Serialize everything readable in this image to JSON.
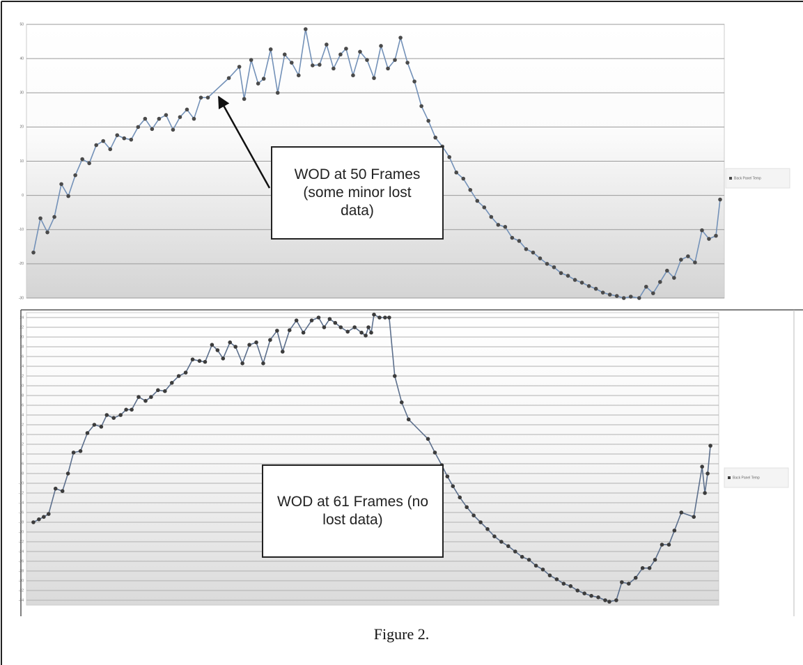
{
  "caption": "Figure 2.",
  "chart_data": [
    {
      "type": "line",
      "annotation": "WOD at 50 Frames (some minor lost data)",
      "xlim": [
        4,
        104
      ],
      "ylim": [
        -30,
        50
      ],
      "yticks": [
        -30,
        -20,
        -10,
        0,
        10,
        20,
        30,
        40,
        50
      ],
      "grid": true,
      "legend": "right",
      "x": [
        5,
        6,
        7,
        8,
        9,
        10,
        11,
        12,
        13,
        14,
        15,
        16,
        17,
        18,
        19,
        20,
        21,
        22,
        23,
        24,
        25,
        26,
        27,
        28,
        29,
        30,
        33,
        34.5,
        35.2,
        36.2,
        37.2,
        38,
        39,
        40,
        41,
        42,
        43,
        44,
        45,
        46,
        47,
        48,
        49,
        49.8,
        50.8,
        51.8,
        52.8,
        53.8,
        54.8,
        55.8,
        56.8,
        57.6,
        58.6,
        59.6,
        60.6,
        61.6,
        62.6,
        63.6,
        64.6,
        65.6,
        66.6,
        67.6,
        68.6,
        69.6,
        70.6,
        71.6,
        72.6,
        73.6,
        74.6,
        75.6,
        76.6,
        77.6,
        78.6,
        79.6,
        80.6,
        81.6,
        82.6,
        83.6,
        84.6,
        85.6,
        86.6,
        87.6,
        88.6,
        89.6,
        90.6,
        91.8,
        92.8,
        93.8,
        94.8,
        95.8,
        96.8,
        97.8,
        98.8,
        99.8,
        100.8,
        101.8,
        102.8,
        103.4
      ],
      "series": [
        {
          "name": "Back Panel Temp",
          "color": "#7391b8",
          "values": [
            -16.7,
            -6.7,
            -10.8,
            -6.3,
            3.3,
            -0.2,
            5.9,
            10.6,
            9.4,
            14.7,
            15.9,
            13.5,
            17.6,
            16.7,
            16.3,
            20,
            22.4,
            19.4,
            22.4,
            23.5,
            19.2,
            22.9,
            25.1,
            22.4,
            28.6,
            28.6,
            34.3,
            37.6,
            28.2,
            39.6,
            32.7,
            34.1,
            42.7,
            30,
            41.2,
            38.8,
            35.1,
            48.6,
            38,
            38.2,
            44.1,
            37.1,
            41.2,
            42.9,
            35.1,
            42,
            39.6,
            34.3,
            43.7,
            37.1,
            39.6,
            46.1,
            38.8,
            33.3,
            26.1,
            21.8,
            16.9,
            14.3,
            11.2,
            6.7,
            4.9,
            1.6,
            -1.6,
            -3.5,
            -6.3,
            -8.6,
            -9.2,
            -12.4,
            -13.3,
            -15.7,
            -16.7,
            -18.4,
            -20,
            -21,
            -22.7,
            -23.5,
            -24.7,
            -25.5,
            -26.5,
            -27.3,
            -28.4,
            -29,
            -29.4,
            -30,
            -29.6,
            -30,
            -26.7,
            -28.6,
            -25.3,
            -22,
            -24.1,
            -18.8,
            -17.8,
            -19.6,
            -10.2,
            -12.7,
            -11.8,
            -1.2
          ]
        }
      ]
    },
    {
      "type": "line",
      "annotation": "WOD at 61 Frames (no lost data)",
      "xlim": [
        4,
        104
      ],
      "ylim": [
        -35,
        25
      ],
      "yticks": [
        -34,
        -32,
        -30,
        -28,
        -26,
        -24,
        -22,
        -20,
        -18,
        -16,
        -14,
        -12,
        -10,
        -8,
        -6,
        -4,
        -2,
        0,
        2,
        4,
        6,
        8,
        10,
        12,
        14,
        16,
        18,
        20,
        22,
        24
      ],
      "grid": true,
      "legend": "right",
      "x": [
        5,
        5.8,
        6.5,
        7.2,
        8.2,
        9.2,
        10,
        10.8,
        11.8,
        12.8,
        13.8,
        14.8,
        15.6,
        16.6,
        17.6,
        18.4,
        19.2,
        20.2,
        21.2,
        22,
        23,
        24,
        25,
        26,
        27,
        28,
        29,
        29.8,
        30.8,
        31.6,
        32.4,
        33.4,
        34.2,
        35.2,
        36.2,
        37.2,
        38.2,
        39.2,
        40.2,
        41,
        42,
        43,
        44,
        45.2,
        46.2,
        47,
        47.8,
        48.6,
        49.4,
        50.4,
        51.4,
        52.4,
        53,
        53.4,
        53.8,
        54.2,
        55,
        55.8,
        56.4,
        57.2,
        58.2,
        59.2,
        62,
        63,
        64,
        64.8,
        65.6,
        66.6,
        67.6,
        68.6,
        69.6,
        70.6,
        71.6,
        72.6,
        73.6,
        74.6,
        75.6,
        76.6,
        77.6,
        78.6,
        79.6,
        80.6,
        81.6,
        82.6,
        83.6,
        84.6,
        85.6,
        86.6,
        87.6,
        88.2,
        89.2,
        90,
        91,
        92,
        93,
        94,
        94.8,
        95.8,
        96.8,
        97.6,
        98.6,
        100.4,
        101.6,
        102,
        102.4,
        102.8
      ],
      "series": [
        {
          "name": "Back Panel Temp",
          "color": "#5c6f8c",
          "values": [
            -18,
            -17.4,
            -16.9,
            -16.3,
            -11.1,
            -11.6,
            -8,
            -3.7,
            -3.4,
            0.3,
            2,
            1.6,
            4,
            3.4,
            4,
            5.1,
            5.1,
            7.7,
            6.9,
            7.7,
            9.1,
            8.9,
            10.6,
            12,
            12.7,
            15.4,
            15.1,
            14.9,
            18.4,
            17.3,
            15.6,
            18.9,
            18,
            14.6,
            18.4,
            18.9,
            14.6,
            19.4,
            21.3,
            17,
            21.4,
            23.4,
            20.9,
            23.4,
            24,
            22,
            23.7,
            22.9,
            22,
            21.1,
            22,
            20.9,
            20.3,
            22,
            20.9,
            24.6,
            24,
            24,
            24,
            12,
            6.6,
            3.1,
            -0.9,
            -3.7,
            -6.3,
            -8.6,
            -10.6,
            -12.9,
            -14.9,
            -16.6,
            -18,
            -19.4,
            -20.9,
            -22,
            -22.9,
            -24,
            -25.1,
            -25.7,
            -26.9,
            -27.7,
            -28.9,
            -29.7,
            -30.6,
            -31.1,
            -32,
            -32.6,
            -33.1,
            -33.4,
            -34,
            -34.3,
            -34,
            -30.3,
            -30.6,
            -29.4,
            -27.4,
            -27.4,
            -25.7,
            -22.6,
            -22.6,
            -19.7,
            -16,
            -16.9,
            -6.6,
            -12,
            -8,
            -2.3
          ]
        }
      ]
    }
  ]
}
